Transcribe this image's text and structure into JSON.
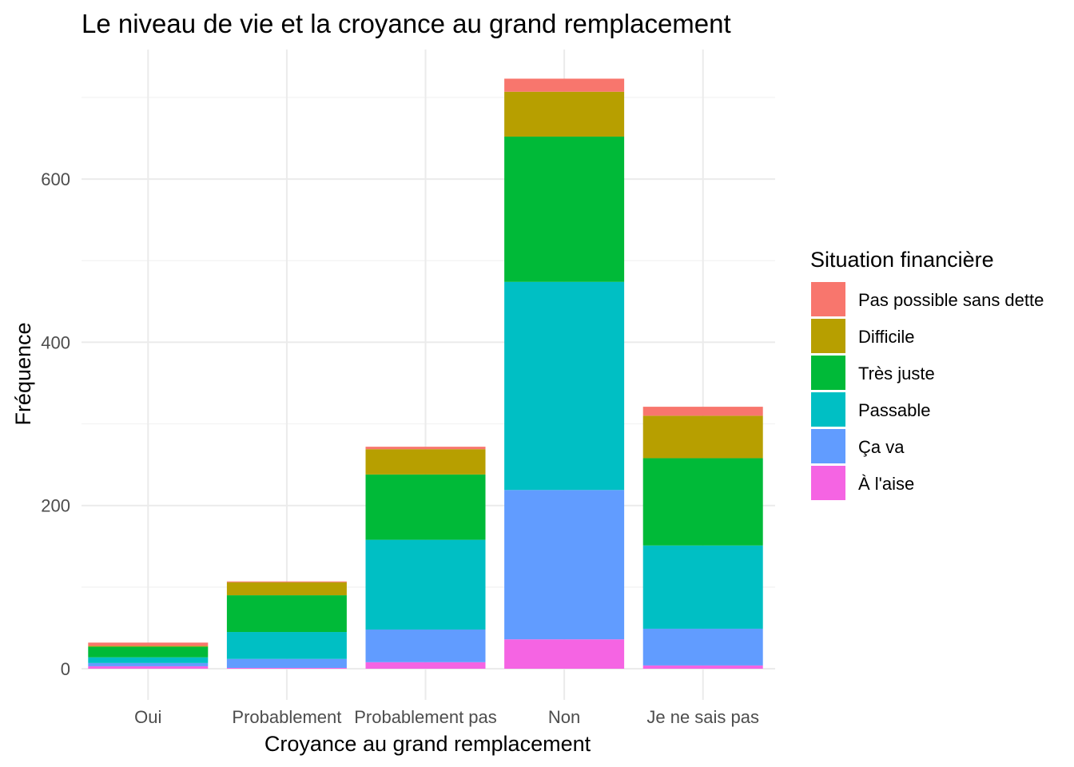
{
  "chart_data": {
    "type": "bar",
    "stacked": true,
    "title": "Le niveau de vie et la croyance au grand remplacement",
    "xlabel": "Croyance au grand remplacement",
    "ylabel": "Fréquence",
    "ylim": [
      0,
      725
    ],
    "yticks": [
      0,
      200,
      400,
      600
    ],
    "grid": true,
    "legend_position": "right",
    "legend_title": "Situation financière",
    "categories": [
      "Oui",
      "Probablement",
      "Probablement pas",
      "Non",
      "Je ne sais pas"
    ],
    "series": [
      {
        "name": "À l'aise",
        "color": "#F564E3",
        "values": [
          3,
          1,
          8,
          36,
          4
        ]
      },
      {
        "name": "Ça va",
        "color": "#619CFF",
        "values": [
          4,
          11,
          40,
          183,
          45
        ]
      },
      {
        "name": "Passable",
        "color": "#00BFC4",
        "values": [
          7,
          33,
          110,
          255,
          102
        ]
      },
      {
        "name": "Très juste",
        "color": "#00BA38",
        "values": [
          13,
          45,
          80,
          178,
          107
        ]
      },
      {
        "name": "Difficile",
        "color": "#B79F00",
        "values": [
          1,
          16,
          31,
          55,
          52
        ]
      },
      {
        "name": "Pas possible sans dette",
        "color": "#F8766D",
        "values": [
          4,
          1,
          3,
          16,
          11
        ]
      }
    ]
  }
}
